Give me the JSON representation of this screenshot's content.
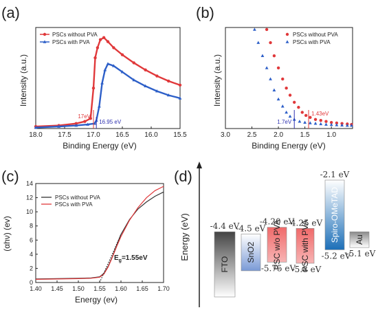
{
  "panel_labels": {
    "a": "(a)",
    "b": "(b)",
    "c": "(c)",
    "d": "(d)"
  },
  "chart_data": [
    {
      "id": "a",
      "type": "line",
      "xlabel": "Binding Energy (eV)",
      "ylabel": "Intensity (a.u.)",
      "xlim": [
        18.0,
        15.5
      ],
      "x_reversed": true,
      "xticks": [
        "18.0",
        "17.5",
        "17.0",
        "16.5",
        "16.0",
        "15.5"
      ],
      "legend": "top-left",
      "series": [
        {
          "name": "PSCs without PVA",
          "color": "#e0383a",
          "marker": "circle",
          "x": [
            18.0,
            17.6,
            17.3,
            17.15,
            17.05,
            17.0,
            16.97,
            16.93,
            16.88,
            16.82,
            16.75,
            16.65,
            16.5,
            16.3,
            16.1,
            15.9,
            15.7,
            15.5
          ],
          "y": [
            0.02,
            0.03,
            0.05,
            0.07,
            0.1,
            0.4,
            0.7,
            0.8,
            0.88,
            0.9,
            0.86,
            0.8,
            0.73,
            0.65,
            0.58,
            0.52,
            0.47,
            0.43
          ]
        },
        {
          "name": "PSCs with PVA",
          "color": "#2d5fc8",
          "marker": "triangle",
          "x": [
            18.0,
            17.6,
            17.3,
            17.1,
            16.98,
            16.95,
            16.9,
            16.85,
            16.8,
            16.75,
            16.65,
            16.5,
            16.3,
            16.1,
            15.9,
            15.7,
            15.5
          ],
          "y": [
            0.01,
            0.02,
            0.03,
            0.04,
            0.05,
            0.08,
            0.22,
            0.45,
            0.58,
            0.64,
            0.62,
            0.56,
            0.48,
            0.42,
            0.37,
            0.33,
            0.3
          ]
        }
      ],
      "annotations": [
        {
          "text": "17eV",
          "color": "#e0383a",
          "x": 17.0
        },
        {
          "text": "16.95 eV",
          "color": "#2d30b0",
          "x": 16.95
        }
      ]
    },
    {
      "id": "b",
      "type": "scatter",
      "xlabel": "Binding Energy (eV)",
      "ylabel": "Intensity (a.u.)",
      "xlim": [
        3.0,
        0.6
      ],
      "x_reversed": true,
      "xticks": [
        "3.0",
        "2.5",
        "2.0",
        "1.5",
        "1.0"
      ],
      "legend": "top-right",
      "series": [
        {
          "name": "PSCs without PVA",
          "color": "#e0383a",
          "marker": "circle",
          "x": [
            2.22,
            2.15,
            2.08,
            2.0,
            1.92,
            1.85,
            1.78,
            1.7,
            1.62,
            1.55,
            1.48,
            1.4,
            1.3,
            1.2,
            1.1,
            1.0,
            0.9,
            0.8,
            0.7,
            0.62
          ],
          "y": [
            0.98,
            0.85,
            0.72,
            0.6,
            0.49,
            0.4,
            0.33,
            0.26,
            0.21,
            0.16,
            0.13,
            0.11,
            0.09,
            0.08,
            0.07,
            0.06,
            0.055,
            0.05,
            0.045,
            0.04
          ]
        },
        {
          "name": "PSCs with PVA",
          "color": "#2d5fc8",
          "marker": "triangle",
          "x": [
            2.45,
            2.38,
            2.3,
            2.22,
            2.15,
            2.08,
            2.0,
            1.92,
            1.85,
            1.78,
            1.7,
            1.6,
            1.5,
            1.4,
            1.3,
            1.2,
            1.1,
            1.0,
            0.9,
            0.8,
            0.7,
            0.62
          ],
          "y": [
            0.98,
            0.85,
            0.72,
            0.6,
            0.49,
            0.38,
            0.29,
            0.22,
            0.16,
            0.12,
            0.09,
            0.07,
            0.06,
            0.055,
            0.05,
            0.045,
            0.04,
            0.038,
            0.035,
            0.033,
            0.03,
            0.03
          ]
        }
      ],
      "annotations": [
        {
          "text": "1.7eV",
          "color": "#2d30b0",
          "x": 1.7
        },
        {
          "text": "1.43eV",
          "color": "#e0383a",
          "x": 1.43
        }
      ]
    },
    {
      "id": "c",
      "type": "line",
      "xlabel": "Energy (ev)",
      "ylabel": "(αhν) (ev)",
      "xlim": [
        1.4,
        1.7
      ],
      "ylim": [
        0,
        14
      ],
      "xticks": [
        "1.40",
        "1.45",
        "1.50",
        "1.55",
        "1.60",
        "1.65",
        "1.70"
      ],
      "yticks": [
        "0",
        "2",
        "4",
        "6",
        "8",
        "10",
        "12",
        "14"
      ],
      "legend": "top-left",
      "series": [
        {
          "name": "PSCs without PVA",
          "color": "#333333",
          "x": [
            1.4,
            1.45,
            1.5,
            1.53,
            1.55,
            1.56,
            1.57,
            1.58,
            1.59,
            1.6,
            1.62,
            1.64,
            1.66,
            1.68,
            1.7
          ],
          "y": [
            0.5,
            0.55,
            0.6,
            0.65,
            0.8,
            1.3,
            2.3,
            3.7,
            5.3,
            6.8,
            8.9,
            10.4,
            11.4,
            12.2,
            12.8
          ]
        },
        {
          "name": "PSCs with PVA",
          "color": "#e0383a",
          "x": [
            1.4,
            1.45,
            1.5,
            1.53,
            1.55,
            1.56,
            1.57,
            1.58,
            1.59,
            1.6,
            1.62,
            1.64,
            1.66,
            1.68,
            1.7
          ],
          "y": [
            0.45,
            0.5,
            0.55,
            0.6,
            0.75,
            1.2,
            2.2,
            3.6,
            5.1,
            6.5,
            8.8,
            10.6,
            12.0,
            13.0,
            13.6
          ]
        }
      ],
      "fit_line": {
        "x": [
          1.55,
          1.6
        ],
        "y": [
          0.0,
          6.8
        ],
        "style": "dotted"
      },
      "annotation": {
        "prefix": "E",
        "sub": "g",
        "value": "=1.55eV"
      }
    },
    {
      "id": "d",
      "type": "bar",
      "title": "",
      "ylabel": "Energy (eV)",
      "categories": [
        "FTO",
        "SnO2",
        "PSC w/o PVA",
        "PSC with PVA",
        "Spiro-OMeTAD",
        "Au"
      ],
      "labels": [
        {
          "top": "-4.4 eV",
          "bottom": ""
        },
        {
          "top": "-4.5 eV",
          "bottom": ""
        },
        {
          "top": "-4.20 eV",
          "bottom": "-5.75 eV"
        },
        {
          "top": "-4.25 eV",
          "bottom": "-5.8 eV"
        },
        {
          "top": "-2.1 eV",
          "bottom": "-5.2 eV"
        },
        {
          "top": "",
          "bottom": "-5.1 eV"
        }
      ],
      "levels_eV": [
        {
          "top": -4.4,
          "bottom": -7.3
        },
        {
          "top": -4.5,
          "bottom": -6.3
        },
        {
          "top": -4.2,
          "bottom": -5.75
        },
        {
          "top": -4.25,
          "bottom": -5.8
        },
        {
          "top": -2.1,
          "bottom": -5.2
        },
        {
          "top": -4.4,
          "bottom": -5.1
        }
      ],
      "colors": [
        "#4a4a4a",
        "#7a9ad6",
        "#f06a6a",
        "#f06a6a",
        "#1c6fb8",
        "#9a9a9a"
      ]
    }
  ]
}
